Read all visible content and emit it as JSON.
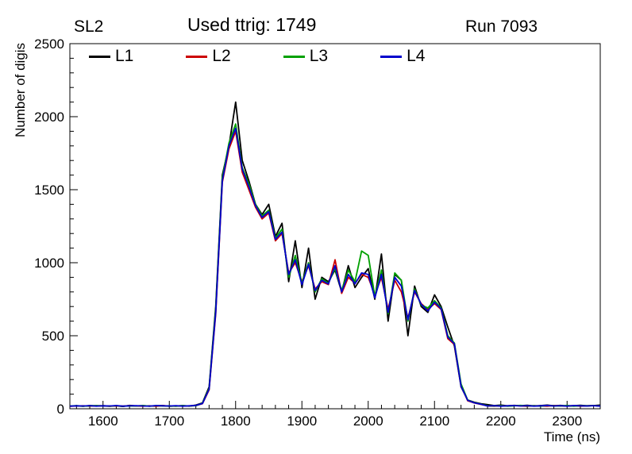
{
  "header": {
    "left_title": "SL2",
    "center_title": "Used ttrig: 1749",
    "right_title": "Run 7093"
  },
  "chart_data": {
    "type": "line",
    "title": "Used ttrig: 1749",
    "xlabel": "Time (ns)",
    "ylabel": "Number of digis",
    "xlim": [
      1550,
      2350
    ],
    "ylim": [
      0,
      2500
    ],
    "x_ticks": [
      1600,
      1700,
      1800,
      1900,
      2000,
      2100,
      2200,
      2300
    ],
    "y_ticks": [
      0,
      500,
      1000,
      1500,
      2000,
      2500
    ],
    "x_minor_step": 20,
    "y_minor_step": 100,
    "grid": false,
    "legend_position": "top-inside",
    "x_start": 1550,
    "x_step": 10,
    "series": [
      {
        "name": "L1",
        "color": "#000000",
        "values": [
          18,
          20,
          17,
          22,
          19,
          21,
          18,
          20,
          16,
          23,
          19,
          21,
          18,
          20,
          22,
          17,
          19,
          21,
          18,
          25,
          40,
          150,
          700,
          1600,
          1800,
          2100,
          1700,
          1560,
          1400,
          1330,
          1400,
          1180,
          1270,
          870,
          1150,
          830,
          1100,
          750,
          900,
          870,
          950,
          800,
          980,
          830,
          900,
          960,
          750,
          1060,
          600,
          920,
          880,
          500,
          840,
          700,
          660,
          780,
          700,
          560,
          430,
          150,
          60,
          45,
          35,
          28,
          22,
          25,
          20,
          23,
          21,
          24,
          19,
          22,
          25,
          20,
          23,
          18,
          21,
          24,
          20,
          22,
          25
        ]
      },
      {
        "name": "L2",
        "color": "#cc0000",
        "values": [
          17,
          19,
          20,
          18,
          21,
          19,
          17,
          20,
          18,
          21,
          19,
          18,
          20,
          17,
          21,
          19,
          18,
          20,
          19,
          22,
          35,
          130,
          650,
          1550,
          1780,
          1900,
          1620,
          1500,
          1380,
          1300,
          1340,
          1150,
          1200,
          930,
          1000,
          870,
          980,
          820,
          870,
          850,
          1020,
          790,
          900,
          860,
          920,
          900,
          780,
          900,
          680,
          880,
          800,
          620,
          800,
          720,
          680,
          720,
          680,
          480,
          440,
          160,
          55,
          40,
          30,
          20,
          18,
          21,
          19,
          22,
          20,
          17,
          21,
          19,
          18,
          22,
          20,
          19,
          21,
          18,
          20,
          22,
          19
        ]
      },
      {
        "name": "L3",
        "color": "#00a000",
        "values": [
          19,
          21,
          18,
          20,
          22,
          19,
          18,
          21,
          17,
          20,
          19,
          22,
          18,
          21,
          19,
          20,
          18,
          22,
          19,
          21,
          38,
          140,
          680,
          1580,
          1820,
          1950,
          1650,
          1540,
          1400,
          1320,
          1360,
          1170,
          1230,
          900,
          1050,
          860,
          1000,
          800,
          890,
          860,
          960,
          810,
          950,
          870,
          1080,
          1050,
          770,
          950,
          650,
          930,
          880,
          600,
          820,
          710,
          690,
          740,
          690,
          500,
          450,
          170,
          60,
          42,
          32,
          21,
          19,
          22,
          18,
          20,
          23,
          19,
          21,
          18,
          22,
          20,
          19,
          23,
          18,
          21,
          20,
          22,
          19
        ]
      },
      {
        "name": "L4",
        "color": "#0000cc",
        "values": [
          18,
          20,
          19,
          21,
          18,
          20,
          19,
          22,
          18,
          20,
          21,
          19,
          18,
          22,
          20,
          19,
          21,
          18,
          20,
          23,
          36,
          135,
          660,
          1560,
          1800,
          1920,
          1640,
          1520,
          1390,
          1310,
          1350,
          1160,
          1210,
          920,
          1020,
          850,
          990,
          810,
          880,
          855,
          980,
          800,
          920,
          855,
          930,
          920,
          760,
          920,
          660,
          900,
          840,
          610,
          810,
          715,
          670,
          730,
          685,
          490,
          445,
          155,
          58,
          41,
          31,
          19,
          21,
          18,
          20,
          22,
          19,
          21,
          18,
          20,
          23,
          19,
          21,
          18,
          22,
          20,
          19,
          21,
          18
        ]
      }
    ]
  }
}
